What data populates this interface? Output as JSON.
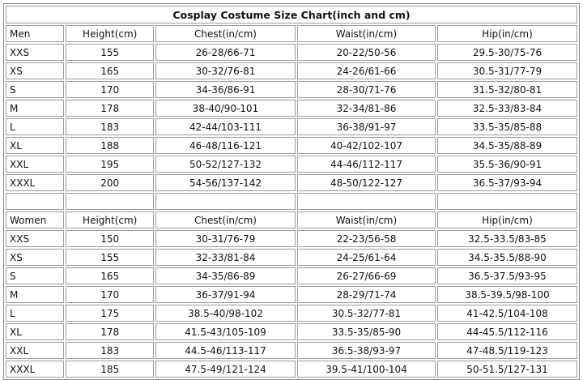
{
  "title": "Cosplay Costume Size Chart(inch and cm)",
  "sections": [
    {
      "header": [
        "Men",
        "Height(cm)",
        "Chest(in/cm)",
        "Waist(in/cm)",
        "Hip(in/cm)"
      ],
      "rows": [
        [
          "XXS",
          "155",
          "26-28/66-71",
          "20-22/50-56",
          "29.5-30/75-76"
        ],
        [
          "XS",
          "165",
          "30-32/76-81",
          "24-26/61-66",
          "30.5-31/77-79"
        ],
        [
          "S",
          "170",
          "34-36/86-91",
          "28-30/71-76",
          "31.5-32/80-81"
        ],
        [
          "M",
          "178",
          "38-40/90-101",
          "32-34/81-86",
          "32.5-33/83-84"
        ],
        [
          "L",
          "183",
          "42-44/103-111",
          "36-38/91-97",
          "33.5-35/85-88"
        ],
        [
          "XL",
          "188",
          "46-48/116-121",
          "40-42/102-107",
          "34.5-35/88-89"
        ],
        [
          "XXL",
          "195",
          "50-52/127-132",
          "44-46/112-117",
          "35.5-36/90-91"
        ],
        [
          "XXXL",
          "200",
          "54-56/137-142",
          "48-50/122-127",
          "36.5-37/93-94"
        ]
      ]
    },
    {
      "header": [
        "Women",
        "Height(cm)",
        "Chest(in/cm)",
        "Waist(in/cm)",
        "Hip(in/cm)"
      ],
      "rows": [
        [
          "XXS",
          "150",
          "30-31/76-79",
          "22-23/56-58",
          "32.5-33.5/83-85"
        ],
        [
          "XS",
          "155",
          "32-33/81-84",
          "24-25/61-64",
          "34.5-35.5/88-90"
        ],
        [
          "S",
          "165",
          "34-35/86-89",
          "26-27/66-69",
          "36.5-37.5/93-95"
        ],
        [
          "M",
          "170",
          "36-37/91-94",
          "28-29/71-74",
          "38.5-39.5/98-100"
        ],
        [
          "L",
          "175",
          "38.5-40/98-102",
          "30.5-32/77-81",
          "41-42.5/104-108"
        ],
        [
          "XL",
          "178",
          "41.5-43/105-109",
          "33.5-35/85-90",
          "44-45.5/112-116"
        ],
        [
          "XXL",
          "183",
          "44.5-46/113-117",
          "36.5-38/93-97",
          "47-48.5/119-123"
        ],
        [
          "XXXL",
          "185",
          "47.5-49/121-124",
          "39.5-41/100-104",
          "50-51.5/127-131"
        ]
      ]
    }
  ]
}
